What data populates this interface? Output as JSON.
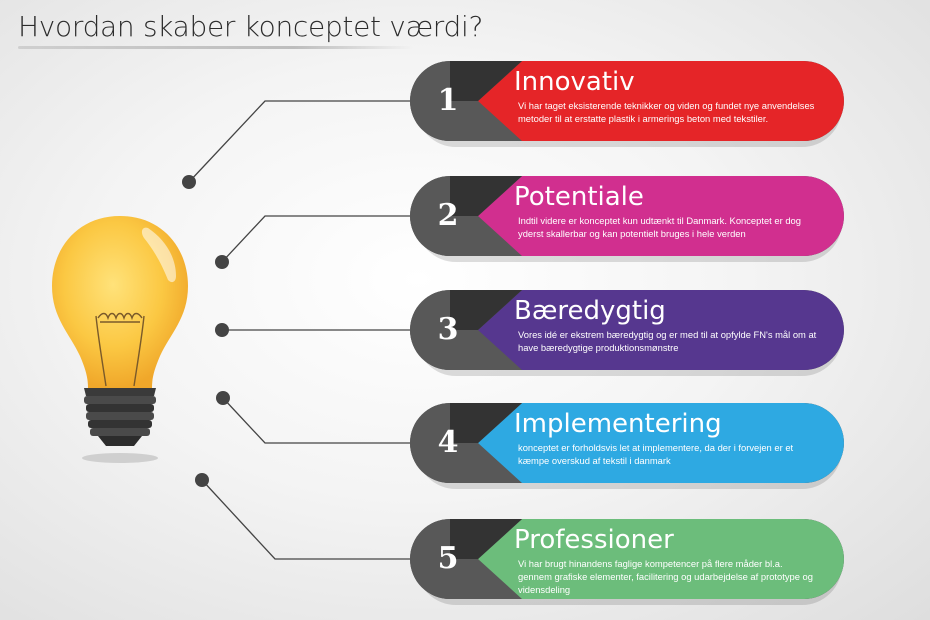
{
  "title": "Hvordan skaber konceptet værdi?",
  "items": [
    {
      "number": "1",
      "title": "Innovativ",
      "description": "Vi har taget eksisterende teknikker og viden og fundet nye anvendelses metoder til at erstatte plastik i armerings beton med tekstiler.",
      "color": "#e52528"
    },
    {
      "number": "2",
      "title": "Potentiale",
      "description": "Indtil videre er konceptet kun udtænkt til Danmark. Konceptet er dog yderst skallerbar og kan potentielt bruges i hele verden",
      "color": "#d12f8f"
    },
    {
      "number": "3",
      "title": "Bæredygtig",
      "description": "Vores idé er ekstrem bæredygtig og er med til at opfylde FN's mål om at have bæredygtige produktionsmønstre",
      "color": "#56378f"
    },
    {
      "number": "4",
      "title": "Implementering",
      "description": "konceptet er forholdsvis let at implementere, da der i forvejen er et kæmpe overskud af tekstil i danmark",
      "color": "#2ea9e2"
    },
    {
      "number": "5",
      "title": "Professioner",
      "description": "Vi har brugt hinandens faglige kompetencer på flere måder bl.a. gennem grafiske elementer, facilitering og udarbejdelse af prototype og vidensdeling",
      "color": "#6cbd7b"
    }
  ],
  "icons": {
    "bulb": "light-bulb-icon"
  }
}
